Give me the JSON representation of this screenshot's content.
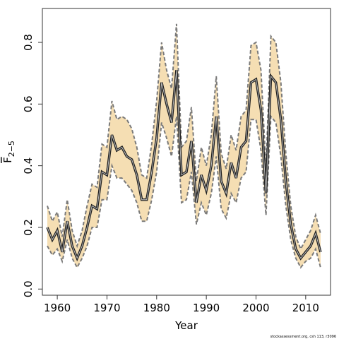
{
  "chart_data": {
    "type": "line",
    "title": "",
    "xlabel": "Year",
    "ylabel": {
      "main": "F",
      "subscript": "2−5"
    },
    "xlim": [
      1957,
      2015
    ],
    "ylim": [
      -0.02,
      0.91
    ],
    "x_ticks": [
      1960,
      1970,
      1980,
      1990,
      2000,
      2010
    ],
    "x_tick_labels": [
      "1960",
      "1970",
      "1980",
      "1990",
      "2000",
      "2010"
    ],
    "y_ticks": [
      0.0,
      0.2,
      0.4,
      0.6,
      0.8
    ],
    "y_tick_labels": [
      "0.0",
      "0.2",
      "0.4",
      "0.6",
      "0.8"
    ],
    "grid": false,
    "colors": {
      "band_fill": "#f5deb3",
      "band_border": "#7a7a7a",
      "estimate_outer": "#222222",
      "estimate_inner": "#bbbbbb"
    },
    "x": [
      1958,
      1959,
      1960,
      1961,
      1962,
      1963,
      1964,
      1965,
      1966,
      1967,
      1968,
      1969,
      1970,
      1971,
      1972,
      1973,
      1974,
      1975,
      1976,
      1977,
      1978,
      1979,
      1980,
      1981,
      1982,
      1983,
      1984,
      1985,
      1986,
      1987,
      1988,
      1989,
      1990,
      1991,
      1992,
      1993,
      1994,
      1995,
      1996,
      1997,
      1998,
      1999,
      2000,
      2001,
      2002,
      2003,
      2004,
      2005,
      2006,
      2007,
      2008,
      2009,
      2010,
      2011,
      2012,
      2013
    ],
    "series": [
      {
        "values": [
          0.2,
          0.16,
          0.19,
          0.12,
          0.22,
          0.14,
          0.1,
          0.14,
          0.2,
          0.27,
          0.26,
          0.38,
          0.37,
          0.5,
          0.45,
          0.46,
          0.43,
          0.42,
          0.37,
          0.29,
          0.29,
          0.38,
          0.49,
          0.67,
          0.6,
          0.54,
          0.71,
          0.37,
          0.38,
          0.48,
          0.28,
          0.37,
          0.32,
          0.4,
          0.56,
          0.35,
          0.31,
          0.41,
          0.36,
          0.46,
          0.48,
          0.67,
          0.68,
          0.58,
          0.31,
          0.69,
          0.67,
          0.55,
          0.35,
          0.21,
          0.13,
          0.1,
          0.12,
          0.14,
          0.18,
          0.12
        ]
      },
      {
        "name_lower": "lower",
        "values": [
          0.14,
          0.11,
          0.13,
          0.09,
          0.16,
          0.1,
          0.07,
          0.1,
          0.14,
          0.2,
          0.2,
          0.29,
          0.29,
          0.4,
          0.36,
          0.36,
          0.34,
          0.32,
          0.28,
          0.22,
          0.22,
          0.29,
          0.38,
          0.54,
          0.49,
          0.43,
          0.56,
          0.28,
          0.29,
          0.38,
          0.21,
          0.28,
          0.24,
          0.31,
          0.43,
          0.26,
          0.23,
          0.31,
          0.28,
          0.36,
          0.38,
          0.55,
          0.55,
          0.45,
          0.24,
          0.56,
          0.54,
          0.43,
          0.27,
          0.16,
          0.1,
          0.07,
          0.09,
          0.1,
          0.13,
          0.07
        ]
      },
      {
        "name_upper": "upper",
        "values": [
          0.27,
          0.22,
          0.25,
          0.17,
          0.29,
          0.19,
          0.14,
          0.19,
          0.27,
          0.34,
          0.33,
          0.47,
          0.46,
          0.61,
          0.55,
          0.56,
          0.55,
          0.52,
          0.46,
          0.37,
          0.36,
          0.47,
          0.61,
          0.8,
          0.71,
          0.65,
          0.86,
          0.46,
          0.48,
          0.59,
          0.35,
          0.46,
          0.4,
          0.5,
          0.69,
          0.44,
          0.39,
          0.5,
          0.45,
          0.56,
          0.58,
          0.79,
          0.8,
          0.71,
          0.39,
          0.82,
          0.8,
          0.67,
          0.44,
          0.27,
          0.17,
          0.13,
          0.16,
          0.19,
          0.24,
          0.18
        ]
      }
    ]
  },
  "footer": "stockassessment.org, csh 113, r3096"
}
